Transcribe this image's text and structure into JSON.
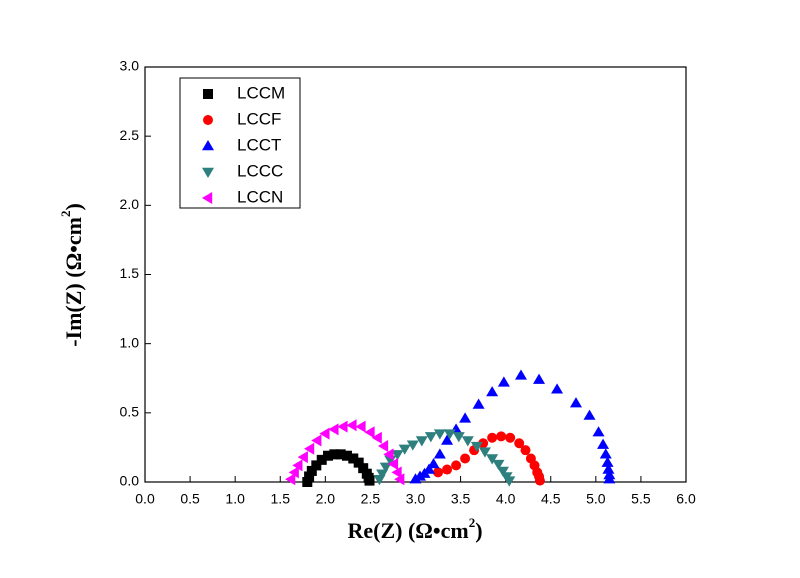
{
  "chart_data": {
    "type": "scatter",
    "x_label": [
      "Re(Z) (Ω•cm",
      "2",
      ")"
    ],
    "y_label": [
      "-Im(Z) (Ω•cm",
      "2",
      ")"
    ],
    "xlim": [
      0,
      6
    ],
    "ylim": [
      0,
      3
    ],
    "xticks": [
      {
        "value": 0,
        "label": "0.0"
      },
      0.5,
      {
        "value": 1,
        "label": "1.0"
      },
      1.5,
      {
        "value": 2,
        "label": "2.0"
      },
      2.5,
      {
        "value": 3,
        "label": "3.0"
      },
      3.5,
      {
        "value": 4,
        "label": "4.0"
      },
      4.5,
      {
        "value": 5,
        "label": "5.0"
      },
      5.5,
      {
        "value": 6,
        "label": "6.0"
      }
    ],
    "yticks": [
      {
        "value": 0,
        "label": "0.0"
      },
      0.5,
      {
        "value": 1,
        "label": "1.0"
      },
      1.5,
      {
        "value": 2,
        "label": "2.0"
      },
      2.5,
      {
        "value": 3,
        "label": "3.0"
      }
    ],
    "legend": "upper left",
    "series": [
      {
        "name": "LCCM",
        "color": "#000000",
        "marker": "square",
        "x": [
          1.8,
          1.82,
          1.85,
          1.9,
          1.96,
          2.03,
          2.1,
          2.17,
          2.24,
          2.31,
          2.37,
          2.42,
          2.46,
          2.48,
          2.49
        ],
        "values": [
          0.0,
          0.04,
          0.08,
          0.12,
          0.16,
          0.19,
          0.2,
          0.2,
          0.19,
          0.17,
          0.14,
          0.1,
          0.06,
          0.03,
          0.01
        ]
      },
      {
        "name": "LCCF",
        "color": "#ff0000",
        "marker": "circle",
        "x": [
          3.25,
          3.35,
          3.45,
          3.55,
          3.65,
          3.75,
          3.85,
          3.95,
          4.05,
          4.15,
          4.22,
          4.28,
          4.32,
          4.35,
          4.37,
          4.38
        ],
        "values": [
          0.07,
          0.09,
          0.12,
          0.17,
          0.23,
          0.28,
          0.32,
          0.33,
          0.32,
          0.28,
          0.23,
          0.17,
          0.12,
          0.07,
          0.04,
          0.01
        ]
      },
      {
        "name": "LCCT",
        "color": "#0000ff",
        "marker": "triangle-up",
        "x": [
          3.0,
          3.05,
          3.1,
          3.15,
          3.2,
          3.27,
          3.35,
          3.45,
          3.55,
          3.7,
          3.85,
          3.98,
          4.17,
          4.37,
          4.57,
          4.78,
          4.93,
          5.03,
          5.08,
          5.11,
          5.13,
          5.14,
          5.15,
          5.15
        ],
        "values": [
          0.02,
          0.04,
          0.06,
          0.09,
          0.13,
          0.2,
          0.3,
          0.38,
          0.46,
          0.56,
          0.65,
          0.72,
          0.77,
          0.74,
          0.67,
          0.57,
          0.48,
          0.36,
          0.27,
          0.2,
          0.14,
          0.09,
          0.05,
          0.02
        ]
      },
      {
        "name": "LCCC",
        "color": "#2f7f7f",
        "marker": "triangle-down",
        "x": [
          2.6,
          2.63,
          2.67,
          2.72,
          2.8,
          2.88,
          2.97,
          3.07,
          3.17,
          3.27,
          3.38,
          3.48,
          3.58,
          3.68,
          3.77,
          3.85,
          3.92,
          3.97,
          4.01,
          4.04
        ],
        "values": [
          0.02,
          0.06,
          0.11,
          0.16,
          0.2,
          0.24,
          0.27,
          0.3,
          0.33,
          0.35,
          0.35,
          0.33,
          0.3,
          0.26,
          0.22,
          0.17,
          0.13,
          0.08,
          0.04,
          0.01
        ]
      },
      {
        "name": "LCCN",
        "color": "#ff00ff",
        "marker": "triangle-left",
        "x": [
          1.62,
          1.66,
          1.7,
          1.76,
          1.83,
          1.91,
          2.0,
          2.1,
          2.2,
          2.3,
          2.4,
          2.5,
          2.58,
          2.65,
          2.71,
          2.76,
          2.8,
          2.83
        ],
        "values": [
          0.02,
          0.07,
          0.12,
          0.18,
          0.24,
          0.3,
          0.35,
          0.38,
          0.4,
          0.41,
          0.4,
          0.36,
          0.32,
          0.26,
          0.2,
          0.13,
          0.07,
          0.02
        ]
      }
    ]
  }
}
